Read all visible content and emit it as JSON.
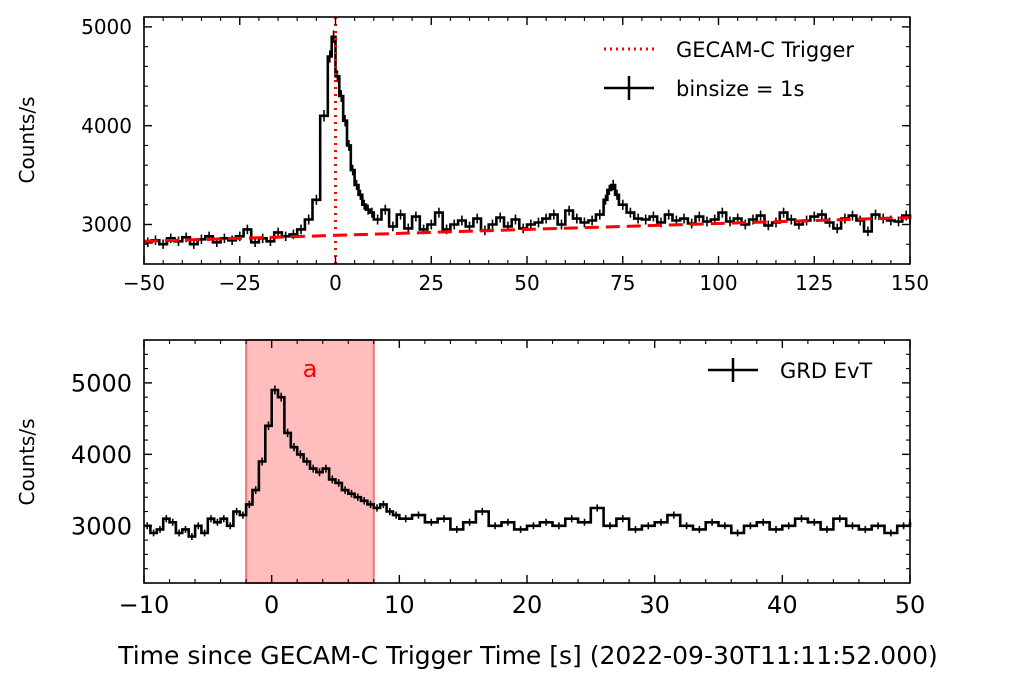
{
  "xlabel": "Time since GECAM-C Trigger Time [s] (2022-09-30T11:11:52.000)",
  "chart_data": [
    {
      "type": "line",
      "panel": "top",
      "xlim": [
        -50,
        150
      ],
      "ylim": [
        2600,
        5100
      ],
      "ylabel": "Counts/s",
      "xticks": [
        -50,
        -25,
        0,
        25,
        50,
        75,
        100,
        125,
        150
      ],
      "xtick_labels": [
        "−50",
        "−25",
        "0",
        "25",
        "50",
        "75",
        "100",
        "125",
        "150"
      ],
      "yticks": [
        3000,
        4000,
        5000
      ],
      "ytick_labels": [
        "3000",
        "4000",
        "5000"
      ],
      "legend_position": "top-right",
      "grid": false,
      "series": [
        {
          "name": "binsize = 1s",
          "style": "step with error bars",
          "color": "#000000",
          "x": [
            -50,
            -48,
            -46,
            -44,
            -42,
            -40,
            -38,
            -36,
            -34,
            -32,
            -30,
            -28,
            -26,
            -24,
            -22,
            -20,
            -18,
            -16,
            -14,
            -12,
            -10,
            -8,
            -6,
            -4,
            -2,
            -1,
            0,
            1,
            2,
            3,
            4,
            5,
            6,
            7,
            8,
            9,
            10,
            12,
            14,
            16,
            18,
            20,
            22,
            24,
            26,
            28,
            30,
            32,
            34,
            36,
            38,
            40,
            42,
            44,
            46,
            48,
            50,
            52,
            54,
            56,
            58,
            60,
            62,
            64,
            66,
            68,
            70,
            71,
            72,
            73,
            74,
            76,
            78,
            80,
            82,
            84,
            86,
            88,
            90,
            92,
            94,
            96,
            98,
            100,
            102,
            104,
            106,
            108,
            110,
            112,
            114,
            116,
            118,
            120,
            122,
            124,
            126,
            128,
            130,
            132,
            134,
            136,
            138,
            140,
            142,
            144,
            146,
            148,
            150
          ],
          "y": [
            2820,
            2840,
            2800,
            2860,
            2830,
            2870,
            2800,
            2850,
            2880,
            2820,
            2860,
            2840,
            2880,
            2950,
            2820,
            2860,
            2830,
            2920,
            2880,
            2900,
            2950,
            3050,
            3250,
            4100,
            4700,
            4900,
            4500,
            4300,
            4050,
            3800,
            3550,
            3400,
            3300,
            3200,
            3150,
            3120,
            3050,
            3150,
            2980,
            3100,
            2960,
            3080,
            2950,
            3000,
            3120,
            2950,
            3000,
            3040,
            2980,
            3060,
            2940,
            3000,
            3070,
            2980,
            3050,
            2960,
            3000,
            3020,
            3060,
            3100,
            3000,
            3140,
            3060,
            3020,
            3040,
            3100,
            3250,
            3350,
            3400,
            3300,
            3200,
            3120,
            3060,
            3050,
            3080,
            3020,
            3100,
            3040,
            3060,
            3010,
            3080,
            3030,
            3050,
            3120,
            3030,
            3060,
            3000,
            3050,
            3090,
            2990,
            3020,
            3120,
            3050,
            3000,
            3040,
            3080,
            3100,
            3020,
            2960,
            3060,
            3090,
            3040,
            2930,
            3100,
            3060,
            3040,
            3030,
            3090,
            3050
          ]
        },
        {
          "name": "",
          "style": "dashed background fit",
          "color": "#ff0000",
          "x": [
            -50,
            150
          ],
          "y": [
            2830,
            3070
          ]
        },
        {
          "name": "GECAM-C Trigger",
          "style": "dotted vertical line",
          "color": "#ff0000",
          "x": [
            0,
            0
          ],
          "y": [
            2600,
            5100
          ]
        }
      ]
    },
    {
      "type": "line",
      "panel": "bottom",
      "xlim": [
        -10,
        50
      ],
      "ylim": [
        2200,
        5600
      ],
      "ylabel": "Counts/s",
      "xticks": [
        -10,
        0,
        10,
        20,
        30,
        40,
        50
      ],
      "xtick_labels": [
        "−10",
        "0",
        "10",
        "20",
        "30",
        "40",
        "50"
      ],
      "yticks": [
        3000,
        4000,
        5000
      ],
      "ytick_labels": [
        "3000",
        "4000",
        "5000"
      ],
      "legend_position": "top-right",
      "grid": false,
      "shaded_region": {
        "x": [
          -2,
          8
        ],
        "label": "a",
        "color": "#ff9999"
      },
      "series": [
        {
          "name": "GRD EvT",
          "style": "step with error bars",
          "color": "#000000",
          "x": [
            -10,
            -9.5,
            -9,
            -8.5,
            -8,
            -7.5,
            -7,
            -6.5,
            -6,
            -5.5,
            -5,
            -4.5,
            -4,
            -3.5,
            -3,
            -2.5,
            -2,
            -1.5,
            -1,
            -0.5,
            0,
            0.5,
            1,
            1.5,
            2,
            2.5,
            3,
            3.5,
            4,
            4.5,
            5,
            5.5,
            6,
            6.5,
            7,
            7.5,
            8,
            8.5,
            9,
            9.5,
            10,
            11,
            12,
            13,
            14,
            15,
            16,
            17,
            18,
            19,
            20,
            21,
            22,
            23,
            24,
            25,
            26,
            27,
            28,
            29,
            30,
            31,
            32,
            33,
            34,
            35,
            36,
            37,
            38,
            39,
            40,
            41,
            42,
            43,
            44,
            45,
            46,
            47,
            48,
            49,
            50
          ],
          "y": [
            3000,
            2900,
            2950,
            3100,
            3050,
            2900,
            2950,
            2850,
            3000,
            2900,
            3100,
            3050,
            3100,
            3000,
            3200,
            3150,
            3300,
            3500,
            3900,
            4400,
            4900,
            4800,
            4300,
            4100,
            4000,
            3900,
            3800,
            3750,
            3800,
            3650,
            3600,
            3500,
            3450,
            3400,
            3350,
            3300,
            3250,
            3300,
            3200,
            3150,
            3100,
            3150,
            3050,
            3100,
            2950,
            3050,
            3200,
            3000,
            3050,
            2950,
            3000,
            3050,
            3000,
            3100,
            3050,
            3250,
            3000,
            3100,
            2950,
            3000,
            3050,
            3150,
            3000,
            2950,
            3050,
            3000,
            2900,
            3000,
            3050,
            2950,
            3000,
            3100,
            3050,
            2950,
            3100,
            3000,
            2950,
            3000,
            2900,
            3000,
            3050
          ]
        }
      ]
    }
  ]
}
